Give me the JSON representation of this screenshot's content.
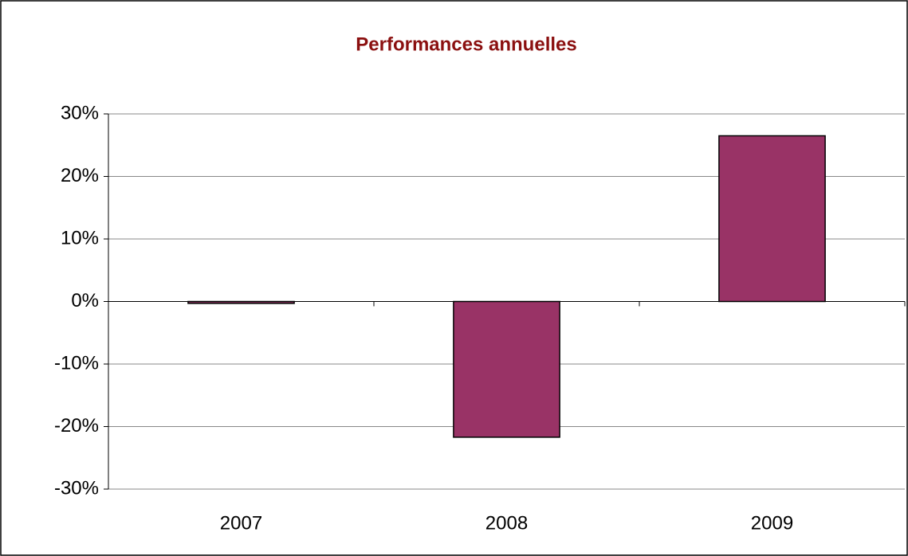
{
  "chart_data": {
    "type": "bar",
    "title": "Performances annuelles",
    "categories": [
      "2007",
      "2008",
      "2009"
    ],
    "values": [
      -0.3,
      -21.7,
      26.5
    ],
    "color": "#993366",
    "ylim": [
      -30,
      30
    ],
    "yticks": [
      {
        "value": -30,
        "label": "-30%"
      },
      {
        "value": -20,
        "label": "-20%"
      },
      {
        "value": -10,
        "label": "-10%"
      },
      {
        "value": 0,
        "label": "0%"
      },
      {
        "value": 10,
        "label": "10%"
      },
      {
        "value": 20,
        "label": "20%"
      },
      {
        "value": 30,
        "label": "30%"
      }
    ],
    "grid": true
  }
}
